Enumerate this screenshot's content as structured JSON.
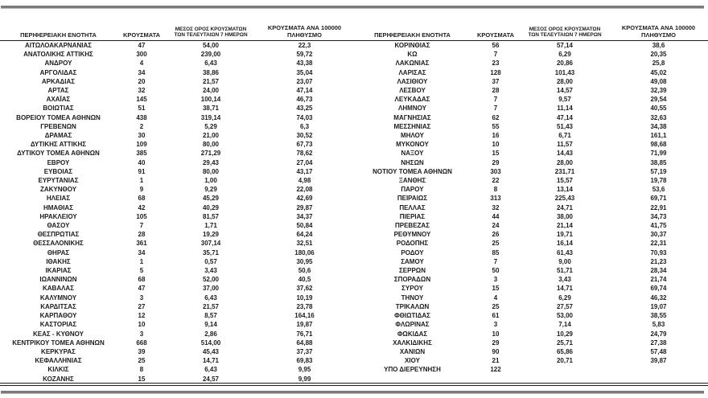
{
  "page": {
    "background": "#ffffff",
    "text_color": "#1c1c1c",
    "rule_color": "#7a7a7a"
  },
  "table_headers": {
    "region": "ΠΕΡΙΦΕΡΕΙΑΚΗ ΕΝΟΤΗΤΑ",
    "cases": "ΚΡΟΥΣΜΑΤΑ",
    "avg7_line1": "ΜΕΣΟΣ ΟΡΟΣ ΚΡΟΥΣΜΑΤΩΝ",
    "avg7_line2": "ΤΩΝ ΤΕΛΕΥΤΑΙΩΝ 7 ΗΜΕΡΩΝ",
    "per100k_line1": "ΚΡΟΥΣΜΑΤΑ ΑΝΑ 100000",
    "per100k_line2": "ΠΛΗΘΥΣΜΟ"
  },
  "left_table": {
    "rows": [
      [
        "ΑΙΤΩΛΟΑΚΑΡΝΑΝΙΑΣ",
        "47",
        "54,00",
        "22,3"
      ],
      [
        "ΑΝΑΤΟΛΙΚΗΣ ΑΤΤΙΚΗΣ",
        "300",
        "239,00",
        "59,72"
      ],
      [
        "ΑΝΔΡΟΥ",
        "4",
        "6,43",
        "43,38"
      ],
      [
        "ΑΡΓΟΛΙΔΑΣ",
        "34",
        "38,86",
        "35,04"
      ],
      [
        "ΑΡΚΑΔΙΑΣ",
        "20",
        "21,57",
        "23,07"
      ],
      [
        "ΑΡΤΑΣ",
        "32",
        "24,00",
        "47,14"
      ],
      [
        "ΑΧΑΪΑΣ",
        "145",
        "100,14",
        "46,73"
      ],
      [
        "ΒΟΙΩΤΙΑΣ",
        "51",
        "38,71",
        "43,25"
      ],
      [
        "ΒΟΡΕΙΟΥ ΤΟΜΕΑ ΑΘΗΝΩΝ",
        "438",
        "319,14",
        "74,03"
      ],
      [
        "ΓΡΕΒΕΝΩΝ",
        "2",
        "5,29",
        "6,3"
      ],
      [
        "ΔΡΑΜΑΣ",
        "30",
        "21,00",
        "30,52"
      ],
      [
        "ΔΥΤΙΚΗΣ ΑΤΤΙΚΗΣ",
        "109",
        "80,00",
        "67,73"
      ],
      [
        "ΔΥΤΙΚΟΥ ΤΟΜΕΑ ΑΘΗΝΩΝ",
        "385",
        "271,29",
        "78,62"
      ],
      [
        "ΕΒΡΟΥ",
        "40",
        "29,43",
        "27,04"
      ],
      [
        "ΕΥΒΟΙΑΣ",
        "91",
        "80,00",
        "43,17"
      ],
      [
        "ΕΥΡΥΤΑΝΙΑΣ",
        "1",
        "1,00",
        "4,98"
      ],
      [
        "ΖΑΚΥΝΘΟΥ",
        "9",
        "9,29",
        "22,08"
      ],
      [
        "ΗΛΕΙΑΣ",
        "68",
        "45,29",
        "42,69"
      ],
      [
        "ΗΜΑΘΙΑΣ",
        "42",
        "40,29",
        "29,87"
      ],
      [
        "ΗΡΑΚΛΕΙΟΥ",
        "105",
        "81,57",
        "34,37"
      ],
      [
        "ΘΑΣΟΥ",
        "7",
        "1,71",
        "50,84"
      ],
      [
        "ΘΕΣΠΡΩΤΙΑΣ",
        "28",
        "19,29",
        "64,24"
      ],
      [
        "ΘΕΣΣΑΛΟΝΙΚΗΣ",
        "361",
        "307,14",
        "32,51"
      ],
      [
        "ΘΗΡΑΣ",
        "34",
        "35,71",
        "180,06"
      ],
      [
        "ΙΘΑΚΗΣ",
        "1",
        "0,57",
        "30,95"
      ],
      [
        "ΙΚΑΡΙΑΣ",
        "5",
        "3,43",
        "50,6"
      ],
      [
        "ΙΩΑΝΝΙΝΩΝ",
        "68",
        "52,00",
        "40,5"
      ],
      [
        "ΚΑΒΑΛΑΣ",
        "47",
        "37,00",
        "37,62"
      ],
      [
        "ΚΑΛΥΜΝΟΥ",
        "3",
        "6,43",
        "10,19"
      ],
      [
        "ΚΑΡΔΙΤΣΑΣ",
        "27",
        "21,57",
        "23,78"
      ],
      [
        "ΚΑΡΠΑΘΟΥ",
        "12",
        "8,57",
        "164,16"
      ],
      [
        "ΚΑΣΤΟΡΙΑΣ",
        "10",
        "9,14",
        "19,87"
      ],
      [
        "ΚΕΑΣ - ΚΥΘΝΟΥ",
        "3",
        "2,86",
        "76,71"
      ],
      [
        "ΚΕΝΤΡΙΚΟΥ ΤΟΜΕΑ ΑΘΗΝΩΝ",
        "668",
        "514,00",
        "64,88"
      ],
      [
        "ΚΕΡΚΥΡΑΣ",
        "39",
        "45,43",
        "37,37"
      ],
      [
        "ΚΕΦΑΛΛΗΝΙΑΣ",
        "25",
        "14,71",
        "69,83"
      ],
      [
        "ΚΙΛΚΙΣ",
        "8",
        "6,43",
        "9,95"
      ],
      [
        "ΚΟΖΑΝΗΣ",
        "15",
        "24,57",
        "9,99"
      ]
    ]
  },
  "right_table": {
    "rows": [
      [
        "ΚΟΡΙΝΘΙΑΣ",
        "56",
        "57,14",
        "38,6"
      ],
      [
        "ΚΩ",
        "7",
        "6,29",
        "20,35"
      ],
      [
        "ΛΑΚΩΝΙΑΣ",
        "23",
        "20,86",
        "25,8"
      ],
      [
        "ΛΑΡΙΣΑΣ",
        "128",
        "101,43",
        "45,02"
      ],
      [
        "ΛΑΣΙΘΙΟΥ",
        "37",
        "28,00",
        "49,08"
      ],
      [
        "ΛΕΣΒΟΥ",
        "28",
        "14,57",
        "32,39"
      ],
      [
        "ΛΕΥΚΑΔΑΣ",
        "7",
        "9,57",
        "29,54"
      ],
      [
        "ΛΗΜΝΟΥ",
        "7",
        "11,14",
        "40,55"
      ],
      [
        "ΜΑΓΝΗΣΙΑΣ",
        "62",
        "47,14",
        "32,63"
      ],
      [
        "ΜΕΣΣΗΝΙΑΣ",
        "55",
        "51,43",
        "34,38"
      ],
      [
        "ΜΗΛΟΥ",
        "16",
        "6,71",
        "161,1"
      ],
      [
        "ΜΥΚΟΝΟΥ",
        "10",
        "11,57",
        "98,68"
      ],
      [
        "ΝΑΞΟΥ",
        "15",
        "14,43",
        "71,99"
      ],
      [
        "ΝΗΣΩΝ",
        "29",
        "28,00",
        "38,85"
      ],
      [
        "ΝΟΤΙΟΥ ΤΟΜΕΑ ΑΘΗΝΩΝ",
        "303",
        "231,71",
        "57,19"
      ],
      [
        "ΞΑΝΘΗΣ",
        "22",
        "15,57",
        "19,78"
      ],
      [
        "ΠΑΡΟΥ",
        "8",
        "13,14",
        "53,6"
      ],
      [
        "ΠΕΙΡΑΙΩΣ",
        "313",
        "225,43",
        "69,71"
      ],
      [
        "ΠΕΛΛΑΣ",
        "32",
        "24,71",
        "22,91"
      ],
      [
        "ΠΙΕΡΙΑΣ",
        "44",
        "38,00",
        "34,73"
      ],
      [
        "ΠΡΕΒΕΖΑΣ",
        "24",
        "21,14",
        "41,75"
      ],
      [
        "ΡΕΘΥΜΝΟΥ",
        "26",
        "19,71",
        "30,37"
      ],
      [
        "ΡΟΔΟΠΗΣ",
        "25",
        "16,14",
        "22,31"
      ],
      [
        "ΡΟΔΟΥ",
        "85",
        "61,43",
        "70,93"
      ],
      [
        "ΣΑΜΟΥ",
        "7",
        "9,00",
        "21,23"
      ],
      [
        "ΣΕΡΡΩΝ",
        "50",
        "51,71",
        "28,34"
      ],
      [
        "ΣΠΟΡΑΔΩΝ",
        "3",
        "3,43",
        "21,74"
      ],
      [
        "ΣΥΡΟΥ",
        "15",
        "14,71",
        "69,74"
      ],
      [
        "ΤΗΝΟΥ",
        "4",
        "6,29",
        "46,32"
      ],
      [
        "ΤΡΙΚΑΛΩΝ",
        "25",
        "27,57",
        "19,07"
      ],
      [
        "ΦΘΙΩΤΙΔΑΣ",
        "61",
        "53,00",
        "38,55"
      ],
      [
        "ΦΛΩΡΙΝΑΣ",
        "3",
        "7,14",
        "5,83"
      ],
      [
        "ΦΩΚΙΔΑΣ",
        "10",
        "10,29",
        "24,79"
      ],
      [
        "ΧΑΛΚΙΔΙΚΗΣ",
        "29",
        "25,71",
        "27,38"
      ],
      [
        "ΧΑΝΙΩΝ",
        "90",
        "65,86",
        "57,48"
      ],
      [
        "ΧΙΟΥ",
        "21",
        "20,71",
        "39,87"
      ],
      [
        "ΥΠΟ ΔΙΕΡΕΥΝΗΣΗ",
        "122",
        "",
        ""
      ],
      [
        "",
        "",
        "",
        ""
      ]
    ]
  }
}
